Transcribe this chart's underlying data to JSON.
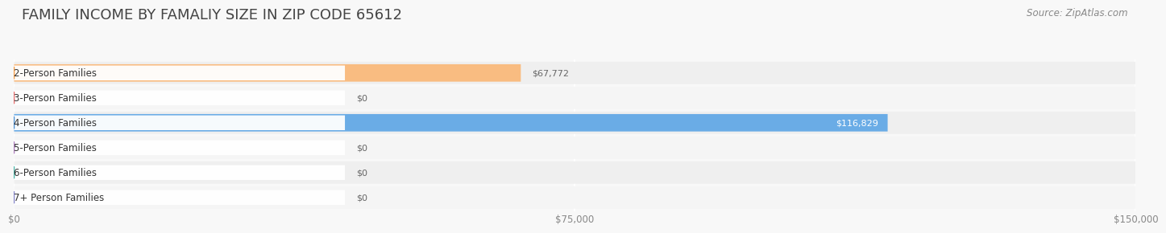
{
  "title": "FAMILY INCOME BY FAMALIY SIZE IN ZIP CODE 65612",
  "source": "Source: ZipAtlas.com",
  "categories": [
    "2-Person Families",
    "3-Person Families",
    "4-Person Families",
    "5-Person Families",
    "6-Person Families",
    "7+ Person Families"
  ],
  "values": [
    67772,
    0,
    116829,
    0,
    0,
    0
  ],
  "bar_colors": [
    "#f9bc81",
    "#f4a0a0",
    "#6aace6",
    "#c9a8d4",
    "#7ec8c0",
    "#b0b8e0"
  ],
  "dot_colors": [
    "#f59c45",
    "#e87070",
    "#4a8fd4",
    "#b080c0",
    "#4db8ac",
    "#8888cc"
  ],
  "row_colors": [
    "#efefef",
    "#f5f5f5",
    "#efefef",
    "#f5f5f5",
    "#efefef",
    "#f5f5f5"
  ],
  "xlim": [
    0,
    150000
  ],
  "xticks": [
    0,
    75000,
    150000
  ],
  "xtick_labels": [
    "$0",
    "$75,000",
    "$150,000"
  ],
  "background_color": "#f8f8f8",
  "title_fontsize": 13,
  "label_fontsize": 8.5,
  "value_fontsize": 8.0,
  "source_fontsize": 8.5,
  "value_color_inside": "#ffffff",
  "value_color_outside": "#666666"
}
